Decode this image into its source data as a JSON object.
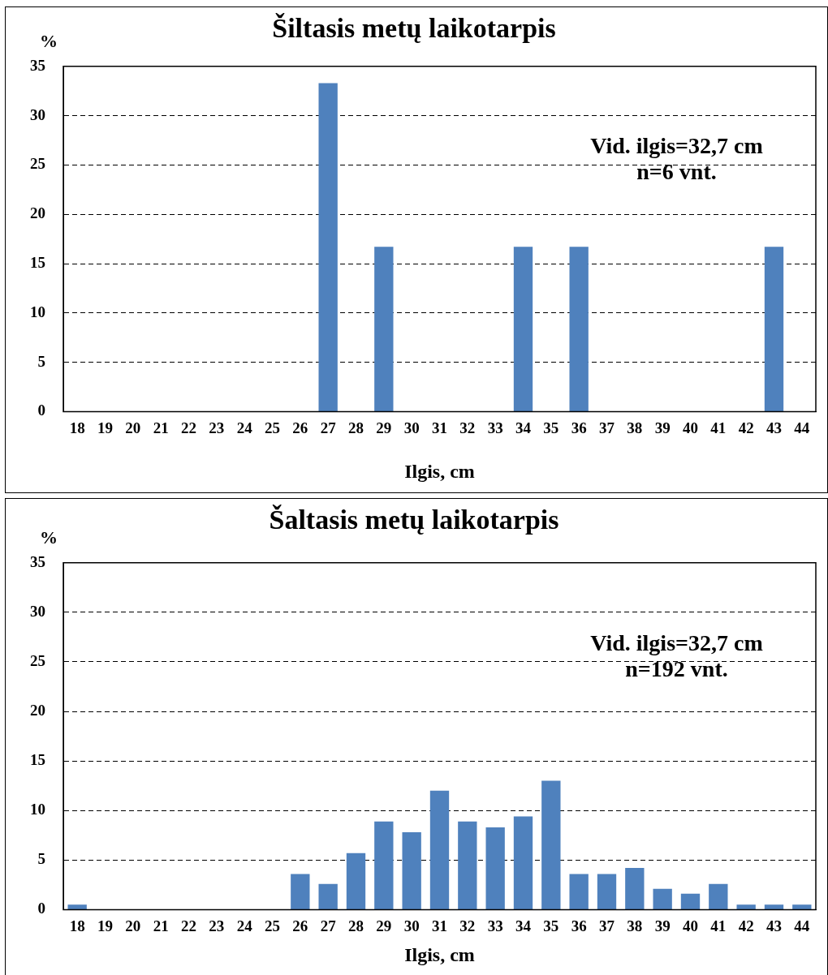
{
  "chart_data": [
    {
      "type": "bar",
      "title": "Šiltasis metų laikotarpis",
      "ylabel": "%",
      "xlabel": "Ilgis, cm",
      "categories": [
        "18",
        "19",
        "20",
        "21",
        "22",
        "23",
        "24",
        "25",
        "26",
        "27",
        "28",
        "29",
        "30",
        "31",
        "32",
        "33",
        "34",
        "35",
        "36",
        "37",
        "38",
        "39",
        "40",
        "41",
        "42",
        "43",
        "44"
      ],
      "values": [
        0,
        0,
        0,
        0,
        0,
        0,
        0,
        0,
        0,
        33.3,
        0,
        16.7,
        0,
        0,
        0,
        0,
        16.7,
        0,
        16.7,
        0,
        0,
        0,
        0,
        0,
        0,
        16.7,
        0
      ],
      "color": "#4f81bd",
      "ylim": [
        0,
        35
      ],
      "yticks": [
        0,
        5,
        10,
        15,
        20,
        25,
        30,
        35
      ],
      "grid": "y",
      "line_style": "dashed",
      "annotations": [
        "Vid. ilgis=32,7 cm",
        "n=6 vnt."
      ]
    },
    {
      "type": "bar",
      "title": "Šaltasis metų laikotarpis",
      "ylabel": "%",
      "xlabel": "Ilgis, cm",
      "categories": [
        "18",
        "19",
        "20",
        "21",
        "22",
        "23",
        "24",
        "25",
        "26",
        "27",
        "28",
        "29",
        "30",
        "31",
        "32",
        "33",
        "34",
        "35",
        "36",
        "37",
        "38",
        "39",
        "40",
        "41",
        "42",
        "43",
        "44"
      ],
      "values": [
        0.5,
        0,
        0,
        0,
        0,
        0,
        0,
        0,
        3.6,
        2.6,
        5.7,
        8.9,
        7.8,
        12.0,
        8.9,
        8.3,
        9.4,
        13.0,
        3.6,
        3.6,
        4.2,
        2.1,
        1.6,
        2.6,
        0.5,
        0.5,
        0.5
      ],
      "color": "#4f81bd",
      "ylim": [
        0,
        35
      ],
      "yticks": [
        0,
        5,
        10,
        15,
        20,
        25,
        30,
        35
      ],
      "grid": "y",
      "line_style": "dashed",
      "annotations": [
        "Vid. ilgis=32,7 cm",
        "n=192 vnt."
      ]
    }
  ]
}
